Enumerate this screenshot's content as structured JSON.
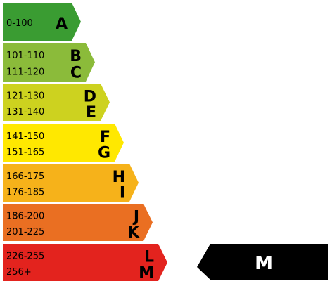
{
  "bands": [
    {
      "rows": [
        {
          "range": "0-100",
          "letter": "A"
        }
      ],
      "color": "#3a9c32"
    },
    {
      "rows": [
        {
          "range": "101-110",
          "letter": "B"
        },
        {
          "range": "111-120",
          "letter": "C"
        }
      ],
      "color": "#8bbb3a"
    },
    {
      "rows": [
        {
          "range": "121-130",
          "letter": "D"
        },
        {
          "range": "131-140",
          "letter": "E"
        }
      ],
      "color": "#cdd21f"
    },
    {
      "rows": [
        {
          "range": "141-150",
          "letter": "F"
        },
        {
          "range": "151-165",
          "letter": "G"
        }
      ],
      "color": "#ffe800"
    },
    {
      "rows": [
        {
          "range": "166-175",
          "letter": "H"
        },
        {
          "range": "176-185",
          "letter": "I"
        }
      ],
      "color": "#f6b21a"
    },
    {
      "rows": [
        {
          "range": "186-200",
          "letter": "J"
        },
        {
          "range": "201-225",
          "letter": "K"
        }
      ],
      "color": "#ea6f22"
    },
    {
      "rows": [
        {
          "range": "226-255",
          "letter": "L"
        },
        {
          "range": "256+",
          "letter": "M"
        }
      ],
      "color": "#e3231e"
    }
  ],
  "rating": {
    "letter": "M",
    "color": "#000000"
  }
}
